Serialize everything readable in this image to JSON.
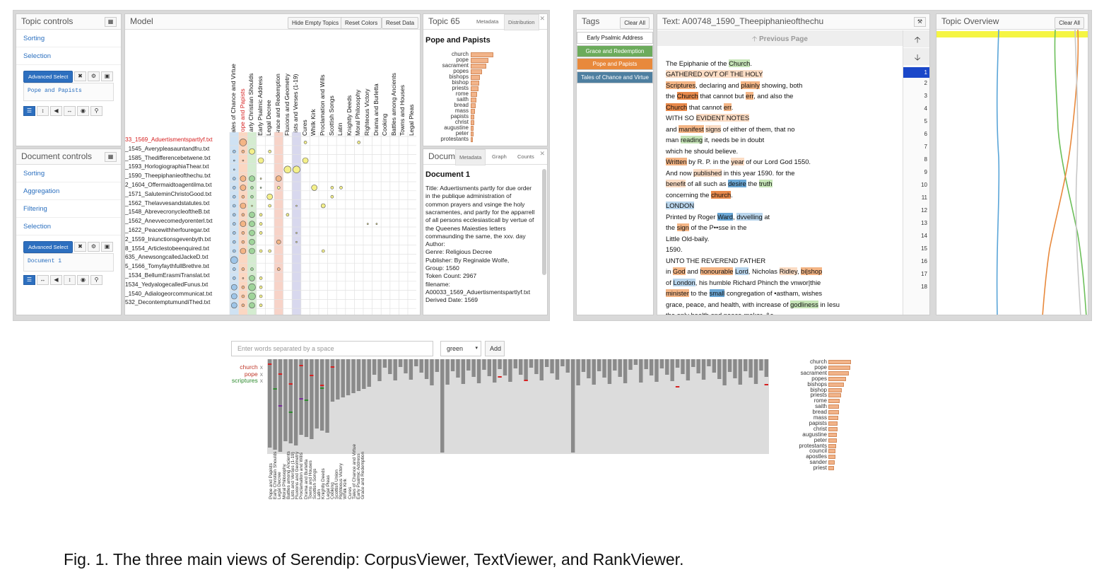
{
  "caption": "Fig. 1. The three main views of Serendip: CorpusViewer, TextViewer, and RankViewer.",
  "corpus_viewer": {
    "topic_controls": {
      "title": "Topic controls",
      "sorting": "Sorting",
      "selection": "Selection",
      "advanced_select": "Advanced Select",
      "selected": "Pope and Papists"
    },
    "document_controls": {
      "title": "Document controls",
      "sorting": "Sorting",
      "aggregation": "Aggregation",
      "filtering": "Filtering",
      "selection": "Selection",
      "advanced_select": "Advanced Select",
      "selected": "Document 1"
    },
    "model": {
      "title": "Model",
      "btn_hide_empty": "Hide Empty Topics",
      "btn_reset_colors": "Reset Colors",
      "btn_reset_data": "Reset Data",
      "topics": [
        "Tales of Chance and Virtue",
        "Pope and Papists",
        "Early Christian Shoulds",
        "Early Psalmic Address",
        "Legal Decree",
        "Grace and Redemption",
        "Fluxions and Geometry",
        "Lists and Verses (1-19)",
        "Cures",
        "Whilk Kirk",
        "Proclamation and Wills",
        "Scottish Songs",
        "Latin",
        "Knightly Deeds",
        "Moral Philosophy",
        "Righteous Victory",
        "Drama and Burletta",
        "Cooking",
        "Battles among Ancients",
        "Towns and Houses",
        "Legal Pleas"
      ],
      "documents": [
        "33_1569_Aduertismentspartlyf.txt",
        "_1545_Averypleasauntandfru.txt",
        "_1585_Thedifferencebetwene.txt",
        "_1593_HorlogiographiaThear.txt",
        "_1590_Theepiphanieofthechu.txt",
        "2_1604_Offermaidtoagentilma.txt",
        "_1571_SaluteminChristoGood.txt",
        "_1562_Thelavvesandstatutes.txt",
        "_1548_AbrevecronycleoftheB.txt",
        "_1562_Anevvecomedyorenterl.txt",
        "_1622_Peacewithherfouregar.txt",
        "2_1559_Iniunctionsgevenbyth.txt",
        "8_1554_Articlestobeenquired.txt",
        "635_AnewsongcalledJackeD.txt",
        "5_1566_TomyfaythfullBrethre.txt",
        "_1534_BellumErasmiTranslat.txt",
        "1534_YedyalogecalledFunus.txt",
        "_1540_Adialogeorcommunicat.txt",
        "532_DecontemptumundiThed.txt"
      ]
    },
    "topic65": {
      "title": "Topic 65",
      "tab_metadata": "Metadata",
      "tab_distribution": "Distribution",
      "name": "Pope and Papists",
      "words": [
        "church",
        "pope",
        "sacrament",
        "popes",
        "bishops",
        "bishop",
        "priests",
        "rome",
        "saith",
        "bread",
        "mass",
        "papists",
        "christ",
        "augustine",
        "peter",
        "protestants"
      ],
      "weights": [
        1.0,
        0.78,
        0.7,
        0.5,
        0.42,
        0.38,
        0.33,
        0.28,
        0.26,
        0.22,
        0.2,
        0.17,
        0.15,
        0.13,
        0.12,
        0.1
      ]
    },
    "document_panel": {
      "title": "Docum",
      "tab_metadata": "Metadata",
      "tab_graph": "Graph",
      "tab_counts": "Counts",
      "doc_title": "Document 1",
      "lines": [
        "Title: Aduertisments partly for due order",
        "in the publique administration of",
        "common prayers and vsinge the holy",
        "sacramentes, and partly for the apparrell",
        "of all persons ecclesiasticall by vertue of",
        "the Queenes Maiesties letters",
        "commaunding the same, the xxv. day",
        "Author:",
        "Genre: Religious Decree",
        "Publisher: By Reginalde Wolfe,",
        "Group: 1560",
        "Token Count: 2967",
        "filename:",
        "A00033_1569_Aduertismentspartlyf.txt",
        "Derived Date: 1569"
      ]
    }
  },
  "text_viewer": {
    "tags": {
      "title": "Tags",
      "clear_all": "Clear All",
      "items": [
        "Early Psalmic Address",
        "Grace and Redemption",
        "Pope and Papists",
        "Tales of Chance and Virtue"
      ]
    },
    "text": {
      "title": "Text: A00748_1590_Theepiphanieofthechu",
      "prev_page": "Previous Page"
    },
    "line_numbers": [
      "1",
      "2",
      "3",
      "4",
      "5",
      "6",
      "7",
      "8",
      "9",
      "10",
      "11",
      "12",
      "13",
      "14",
      "15",
      "16",
      "17",
      "18"
    ],
    "overview": {
      "title": "Topic Overview",
      "clear_all": "Clear All"
    }
  },
  "rank_viewer": {
    "input_placeholder": "Enter words separated by a space",
    "color_value": "green",
    "add_label": "Add",
    "ranked_words": [
      {
        "word": "church",
        "color": "#c0392b"
      },
      {
        "word": "pope",
        "color": "#c0392b"
      },
      {
        "word": "scriptures",
        "color": "#2e8b2e"
      }
    ],
    "x_labels": [
      "Pope and Papists",
      "Early Christian Shoulds",
      "Legal Decree",
      "Moral Philosophy",
      "Battles among Ancients",
      "Lists and Verses (1-19)",
      "Fluxions and Geometry",
      "Proclamation and Wills",
      "Drama and Burletta",
      "Towns and Houses",
      "Scottish Songs",
      "Latin",
      "Knightly Deeds",
      "Legal Pleas",
      "Cooking",
      "Scottish Union",
      "Righteous Victory",
      "Whilk Kirk",
      "Cures",
      "Tales of Chance and Virtue",
      "Early Psalmic Address",
      "Grace and Redemption"
    ],
    "word_list": [
      "church",
      "pope",
      "sacrament",
      "popes",
      "bishops",
      "bishop",
      "priests",
      "rome",
      "saith",
      "bread",
      "mass",
      "papists",
      "christ",
      "augustine",
      "peter",
      "protestants",
      "council",
      "apostles",
      "sander",
      "priest"
    ],
    "word_weights": [
      1.0,
      0.97,
      0.92,
      0.78,
      0.68,
      0.6,
      0.55,
      0.5,
      0.48,
      0.46,
      0.44,
      0.42,
      0.4,
      0.38,
      0.36,
      0.34,
      0.32,
      0.3,
      0.28,
      0.26
    ]
  }
}
